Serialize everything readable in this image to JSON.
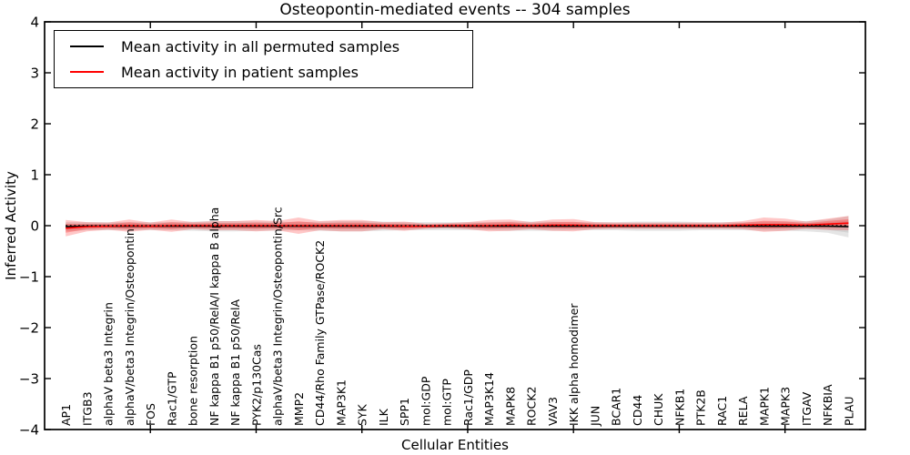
{
  "title": "Osteopontin-mediated events -- 304 samples",
  "axes": {
    "xlabel": "Cellular Entities",
    "ylabel": "Inferred Activity"
  },
  "legend": {
    "items": [
      {
        "label": "Mean activity in all permuted samples",
        "color": "#000000"
      },
      {
        "label": "Mean activity in patient samples",
        "color": "#ff0000"
      }
    ]
  },
  "chart_data": {
    "type": "line",
    "title": "Osteopontin-mediated events -- 304 samples",
    "xlabel": "Cellular Entities",
    "ylabel": "Inferred Activity",
    "ylim": [
      -4,
      4
    ],
    "yticks": [
      -4,
      -3,
      -2,
      -1,
      0,
      1,
      2,
      3,
      4
    ],
    "xlim": [
      0,
      38.8
    ],
    "xticks_major": [
      5,
      10,
      15,
      20,
      25,
      30,
      35
    ],
    "grid": false,
    "legend_position": "upper left",
    "categories": [
      "AP1",
      "ITGB3",
      "alphaV beta3 Integrin",
      "alphaV/beta3 Integrin/Osteopontin",
      "FOS",
      "Rac1/GTP",
      "bone resorption",
      "NF kappa B1 p50/RelA/I kappa B alpha",
      "NF kappa B1 p50/RelA",
      "PYK2/p130Cas",
      "alphaV/beta3 Integrin/Osteopontin/Src",
      "MMP2",
      "CD44/Rho Family GTPase/ROCK2",
      "MAP3K1",
      "SYK",
      "ILK",
      "SPP1",
      "mol:GDP",
      "mol:GTP",
      "Rac1/GDP",
      "MAP3K14",
      "MAPK8",
      "ROCK2",
      "VAV3",
      "IKK alpha homodimer",
      "JUN",
      "BCAR1",
      "CD44",
      "CHUK",
      "NFKB1",
      "PTK2B",
      "RAC1",
      "RELA",
      "MAPK1",
      "MAPK3",
      "ITGAV",
      "NFKBIA",
      "PLAU"
    ],
    "series": [
      {
        "name": "Mean activity in all permuted samples",
        "color": "#000000",
        "values": [
          -0.02,
          -0.01,
          -0.01,
          -0.01,
          -0.01,
          -0.01,
          -0.01,
          -0.01,
          -0.01,
          -0.01,
          -0.01,
          -0.01,
          -0.01,
          -0.01,
          -0.01,
          -0.01,
          -0.01,
          -0.01,
          -0.01,
          -0.01,
          -0.01,
          -0.01,
          -0.01,
          -0.01,
          -0.01,
          -0.01,
          -0.01,
          -0.01,
          -0.01,
          -0.01,
          -0.01,
          -0.01,
          -0.01,
          -0.01,
          -0.01,
          -0.01,
          -0.01,
          -0.02
        ]
      },
      {
        "name": "Mean activity in patient samples",
        "color": "#ff0000",
        "values": [
          -0.05,
          -0.02,
          -0.01,
          0,
          -0.01,
          0,
          0,
          0,
          0,
          0,
          0,
          0,
          0,
          0,
          0,
          0,
          -0.01,
          -0.01,
          0,
          0,
          0,
          0.01,
          0,
          0.01,
          0.01,
          0,
          0,
          0,
          0,
          0,
          0,
          0,
          0.01,
          0.02,
          0.02,
          0.01,
          0.03,
          0.05
        ]
      }
    ],
    "bands": [
      {
        "name": "permuted-samples-spread",
        "color": "#000000",
        "outer_opacity": 0.1,
        "inner_opacity": 0.08,
        "half_widths": [
          0.09,
          0.08,
          0.08,
          0.08,
          0.08,
          0.08,
          0.09,
          0.1,
          0.1,
          0.09,
          0.09,
          0.08,
          0.09,
          0.1,
          0.1,
          0.09,
          0.08,
          0.08,
          0.08,
          0.08,
          0.08,
          0.09,
          0.09,
          0.09,
          0.08,
          0.08,
          0.08,
          0.09,
          0.09,
          0.09,
          0.08,
          0.08,
          0.08,
          0.09,
          0.09,
          0.1,
          0.13,
          0.21
        ]
      },
      {
        "name": "patient-samples-spread",
        "color": "#ff0000",
        "outer_opacity": 0.22,
        "inner_opacity": 0.25,
        "half_widths": [
          0.16,
          0.09,
          0.07,
          0.12,
          0.07,
          0.12,
          0.07,
          0.09,
          0.09,
          0.11,
          0.09,
          0.16,
          0.09,
          0.11,
          0.11,
          0.07,
          0.09,
          0.05,
          0.05,
          0.07,
          0.11,
          0.11,
          0.07,
          0.11,
          0.12,
          0.07,
          0.06,
          0.06,
          0.06,
          0.06,
          0.06,
          0.06,
          0.08,
          0.14,
          0.12,
          0.07,
          0.11,
          0.14
        ]
      }
    ],
    "zero_line": {
      "y": 0,
      "color": "#000000",
      "style": "dotted"
    }
  }
}
